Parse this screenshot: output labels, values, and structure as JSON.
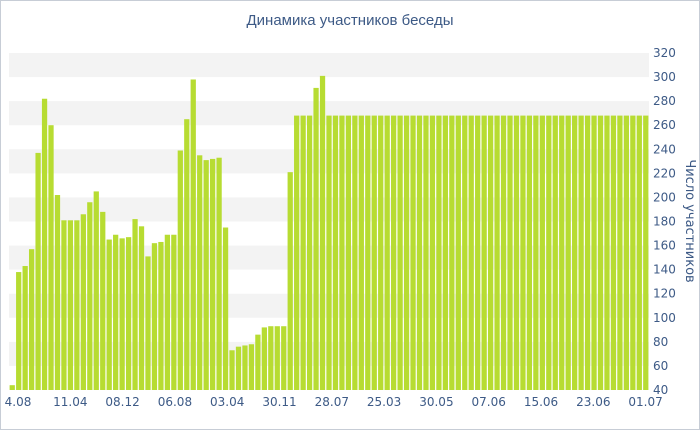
{
  "chart_data": {
    "type": "bar",
    "title": "Динамика участников беседы",
    "xlabel": "",
    "ylabel": "Число участников",
    "ylim": [
      40,
      320
    ],
    "yticks": [
      40,
      60,
      80,
      100,
      120,
      140,
      160,
      180,
      200,
      220,
      240,
      260,
      280,
      300,
      320
    ],
    "xtick_labels": [
      "4.08",
      "11.04",
      "08.12",
      "06.08",
      "03.04",
      "30.11",
      "28.07",
      "25.03",
      "30.05",
      "07.06",
      "15.06",
      "23.06",
      "01.07"
    ],
    "grid": "alternating horizontal bands",
    "bar_color": "#b7dc32",
    "values": [
      44,
      138,
      143,
      157,
      237,
      282,
      260,
      202,
      181,
      181,
      181,
      186,
      196,
      205,
      188,
      165,
      169,
      166,
      167,
      182,
      176,
      151,
      162,
      163,
      169,
      169,
      239,
      265,
      298,
      235,
      231,
      232,
      233,
      175,
      73,
      76,
      77,
      78,
      86,
      92,
      93,
      93,
      93,
      221,
      268,
      268,
      268,
      291,
      301,
      268,
      268,
      268,
      268,
      268,
      268,
      268,
      268,
      268,
      268,
      268,
      268,
      268,
      268,
      268,
      268,
      268,
      268,
      268,
      268,
      268,
      268,
      268,
      268,
      268,
      268,
      268,
      268,
      268,
      268,
      268,
      268,
      268,
      268,
      268,
      268,
      268,
      268,
      268,
      268,
      268,
      268,
      268,
      268,
      268,
      268,
      268,
      268,
      268,
      268
    ]
  }
}
